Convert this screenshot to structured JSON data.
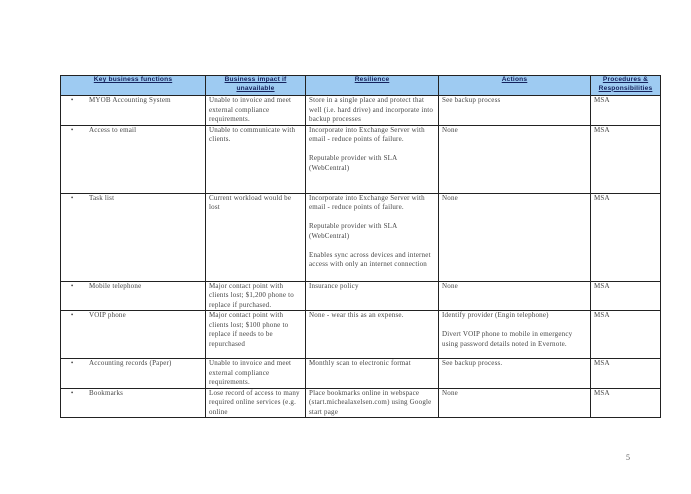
{
  "table": {
    "headers": [
      "Key business functions",
      "Business impact if unavailable",
      "Resilience",
      "Actions",
      "Procedures & Responsibilities"
    ],
    "rows": [
      {
        "function": "MYOB Accounting System",
        "impact": "Unable to invoice and meet external compliance requirements.",
        "resilience": [
          "Store in a single place and protect that well (i.e. hard drive) and incorporate into backup processes"
        ],
        "actions": [
          "See backup process"
        ],
        "procedures": "MSA"
      },
      {
        "function": "Access to email",
        "impact": "Unable to communicate with clients.",
        "resilience": [
          "Incorporate into Exchange Server with email - reduce points of failure.",
          "Reputable provider with SLA (WebCentral)"
        ],
        "actions": [
          "None"
        ],
        "procedures": "MSA"
      },
      {
        "function": "Task list",
        "impact": "Current workload would be lost",
        "resilience": [
          "Incorporate into Exchange Server with email - reduce points of failure.",
          "Reputable provider with SLA (WebCentral)",
          "Enables sync across devices and internet access with only an internet connection"
        ],
        "actions": [
          "None"
        ],
        "procedures": "MSA"
      },
      {
        "function": "Mobile telephone",
        "impact": "Major contact point with clients lost; $1,200 phone to replace if purchased.",
        "resilience": [
          "Insurance policy"
        ],
        "actions": [
          "None"
        ],
        "procedures": "MSA"
      },
      {
        "function": "VOIP phone",
        "impact": "Major contact point with clients lost; $100 phone to replace if needs to be repurchased",
        "resilience": [
          "None - wear this as an expense."
        ],
        "actions": [
          "Identify provider (Engin telephone)",
          "Divert VOIP phone to mobile in emergency using password details noted in Evernote."
        ],
        "procedures": "MSA"
      },
      {
        "function": "Accounting records (Paper)",
        "impact": "Unable to invoice and meet external compliance requirements.",
        "resilience": [
          "Monthly scan to electronic format"
        ],
        "actions": [
          "See backup process."
        ],
        "procedures": "MSA"
      },
      {
        "function": "Bookmarks",
        "impact": "Lose record of access to many required online services (e.g. online",
        "resilience": [
          "Place bookmarks online in webspace (start.michealaxelsen.com) using Google start page"
        ],
        "actions": [
          "None"
        ],
        "procedures": "MSA"
      }
    ]
  },
  "page_number": "5",
  "colors": {
    "header_bg": "#9ecbf2",
    "header_text": "#14215c"
  }
}
